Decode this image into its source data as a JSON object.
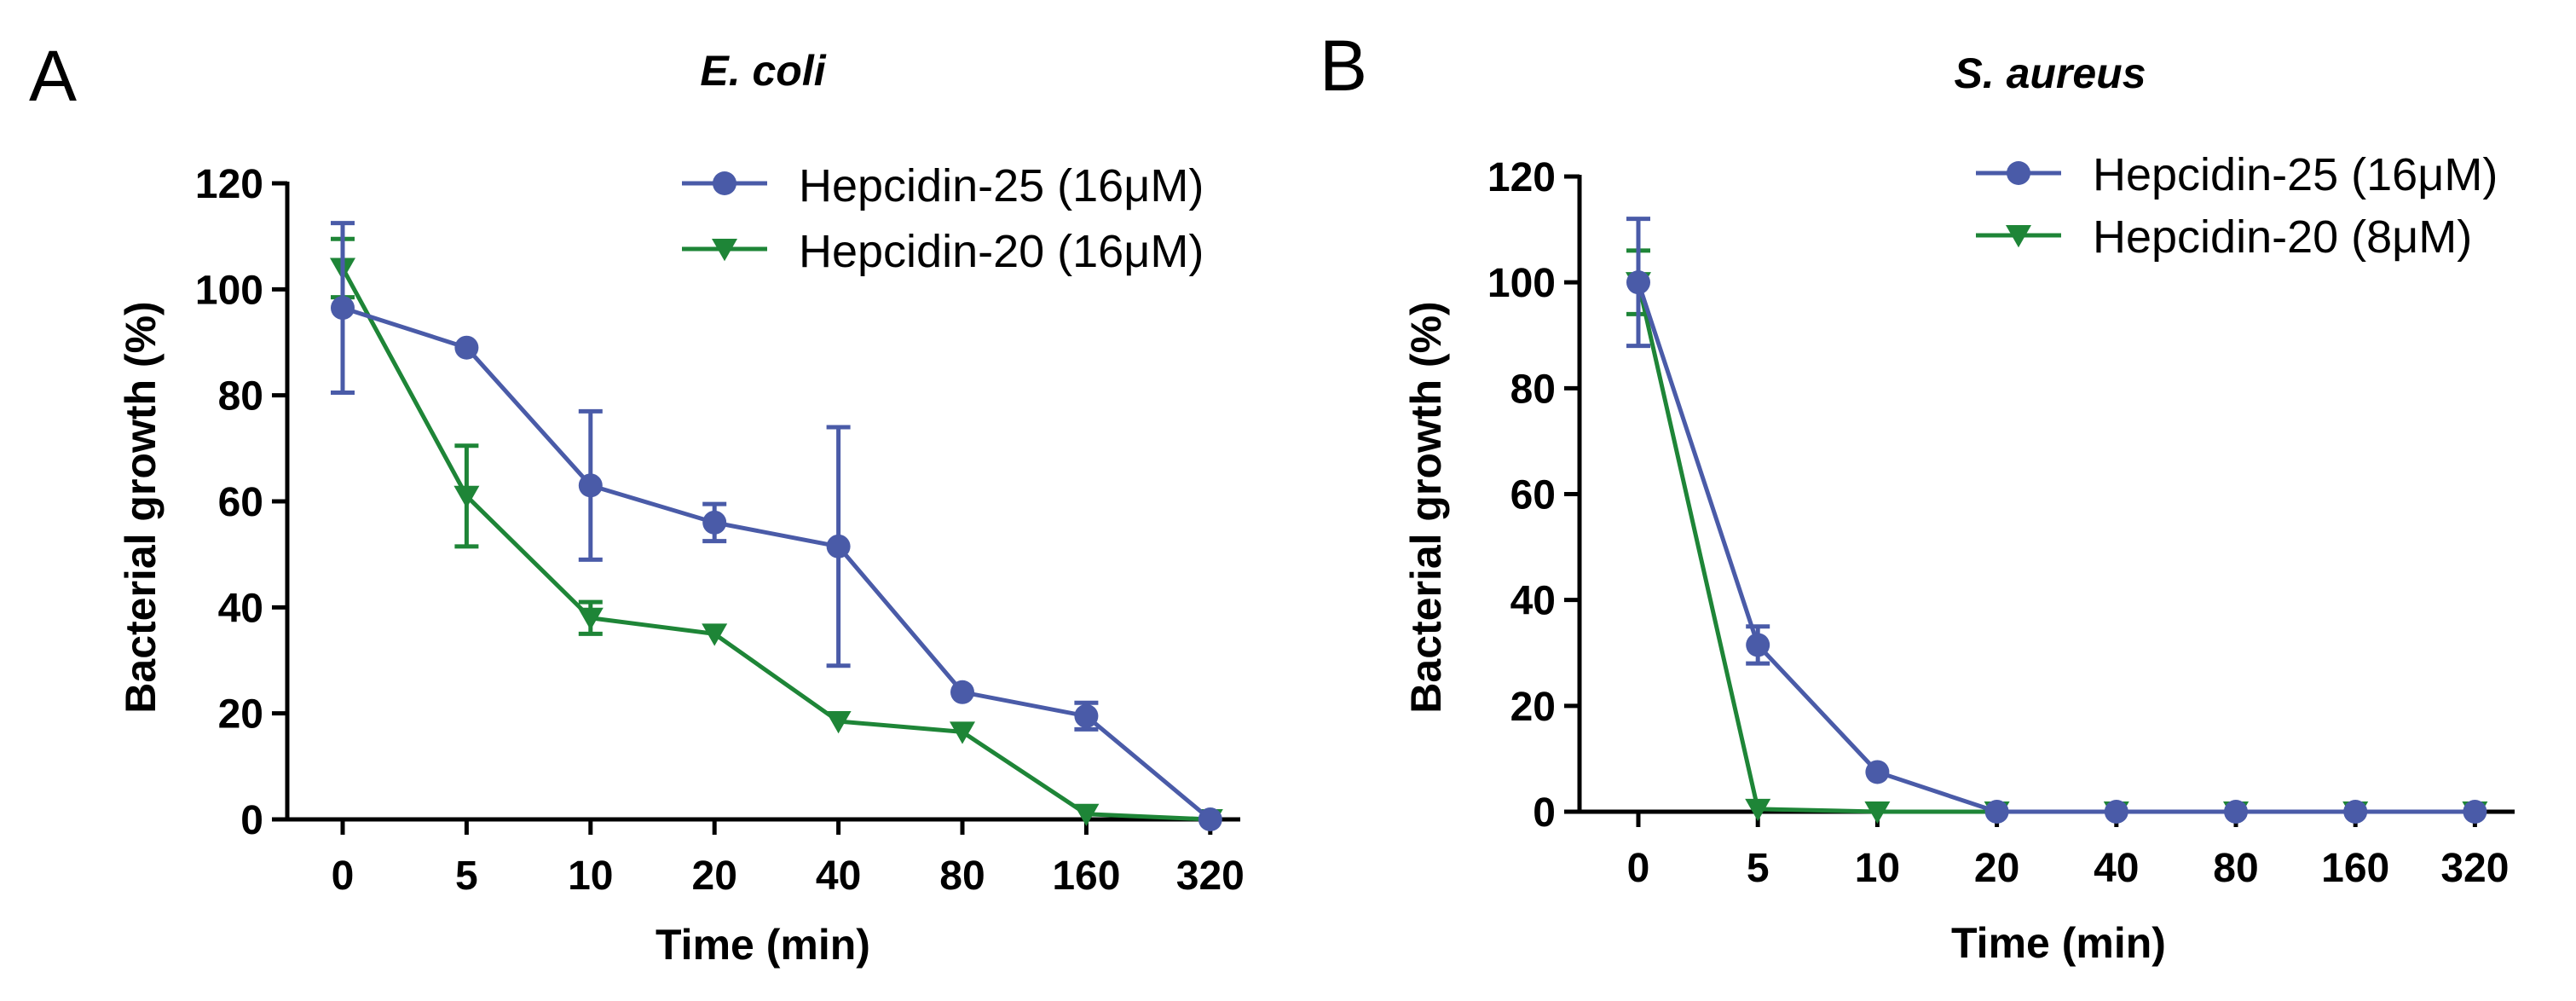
{
  "chart_data": [
    {
      "type": "line",
      "panel": "A",
      "title": "E. coli",
      "xlabel": "Time (min)",
      "ylabel": "Bacterial growth (%)",
      "categories": [
        "0",
        "5",
        "10",
        "20",
        "40",
        "80",
        "160",
        "320"
      ],
      "ylim": [
        0,
        120
      ],
      "yticks": [
        0,
        20,
        40,
        60,
        80,
        100,
        120
      ],
      "legend_position": "top-right",
      "series": [
        {
          "name": "Hepcidin-25 (16μM)",
          "marker": "circle",
          "color": "#4A5BA8",
          "values": [
            96.5,
            89,
            63,
            56,
            51.5,
            24,
            19.5,
            0
          ],
          "errors": [
            16,
            0,
            14,
            3.5,
            22.5,
            0,
            2.5,
            0
          ]
        },
        {
          "name": "Hepcidin-20 (16μM)",
          "marker": "triangle-down",
          "color": "#1E8537",
          "values": [
            104,
            61,
            38,
            35,
            18.5,
            16.5,
            1,
            0
          ],
          "errors": [
            5.5,
            9.5,
            3,
            0,
            0,
            0,
            0,
            0
          ]
        }
      ]
    },
    {
      "type": "line",
      "panel": "B",
      "title": "S. aureus",
      "xlabel": "Time (min)",
      "ylabel": "Bacterial growth (%)",
      "categories": [
        "0",
        "5",
        "10",
        "20",
        "40",
        "80",
        "160",
        "320"
      ],
      "ylim": [
        0,
        120
      ],
      "yticks": [
        0,
        20,
        40,
        60,
        80,
        100,
        120
      ],
      "legend_position": "top-right",
      "series": [
        {
          "name": "Hepcidin-25 (16μM)",
          "marker": "circle",
          "color": "#4A5BA8",
          "values": [
            100,
            31.5,
            7.5,
            0,
            0,
            0,
            0,
            0
          ],
          "errors": [
            12,
            3.5,
            0,
            0,
            0,
            0,
            0,
            0
          ]
        },
        {
          "name": "Hepcidin-20 (8μM)",
          "marker": "triangle-down",
          "color": "#1E8537",
          "values": [
            100,
            0.5,
            0,
            0,
            0,
            0,
            0,
            0
          ],
          "errors": [
            6,
            0,
            0,
            0,
            0,
            0,
            0,
            0
          ]
        }
      ]
    }
  ]
}
